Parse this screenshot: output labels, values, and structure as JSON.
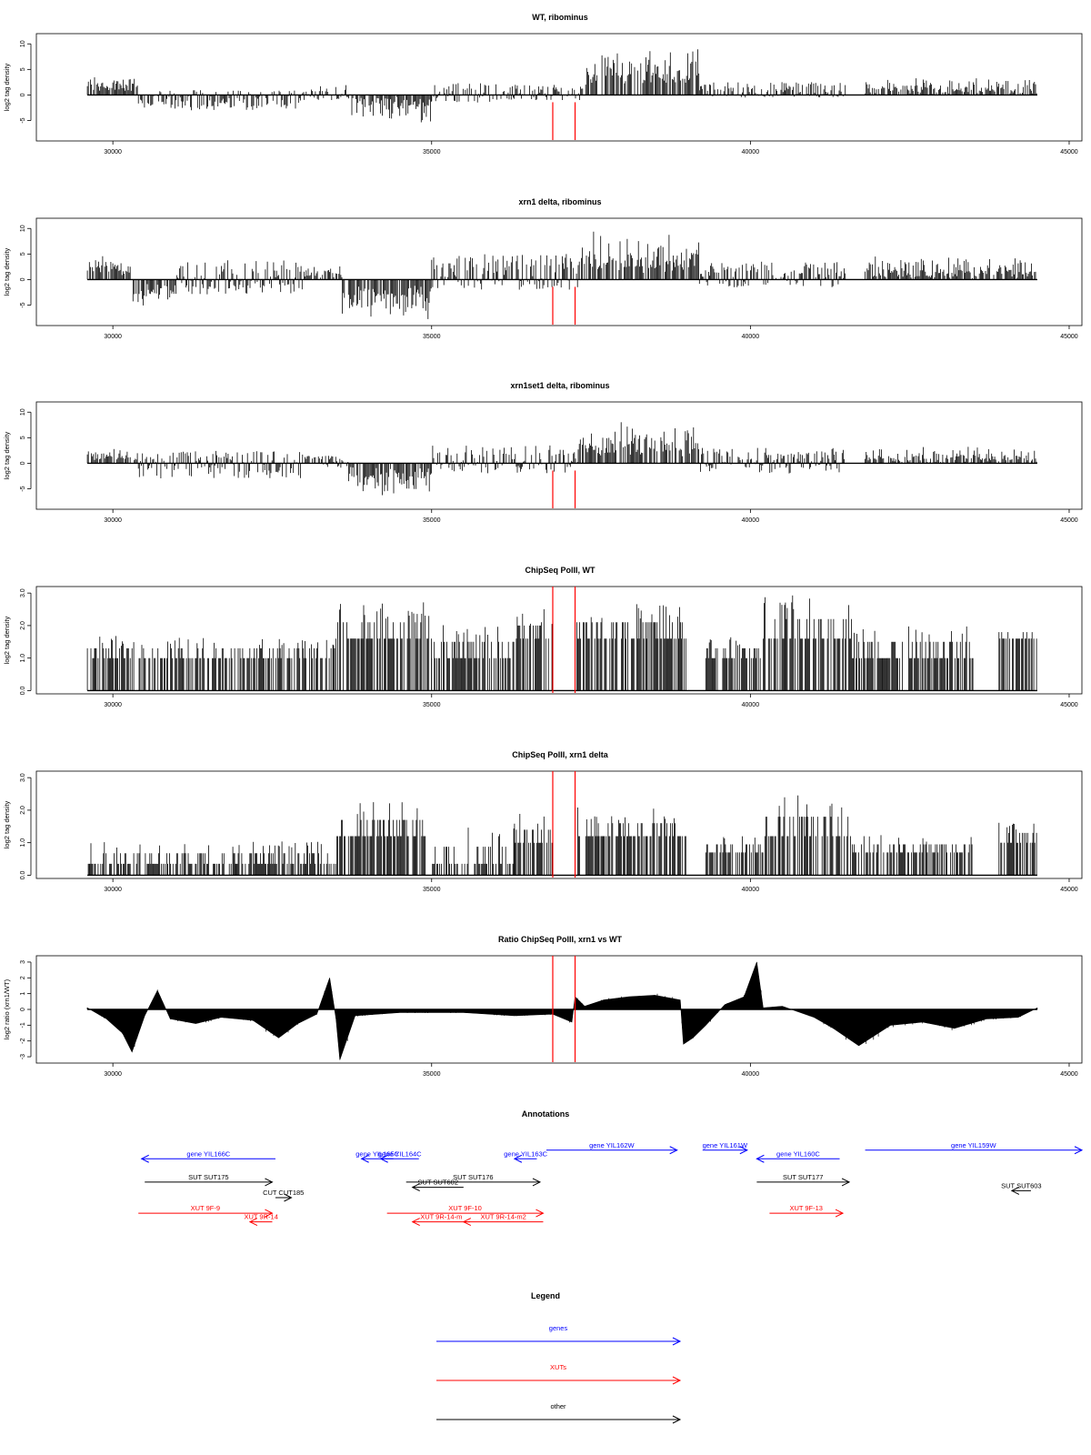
{
  "chart_data": {
    "type": "area",
    "xlim": [
      28800,
      45200
    ],
    "x_ticks": [
      30000,
      35000,
      40000,
      45000
    ],
    "x_tick_labels": [
      "30000",
      "35000",
      "40000",
      "45000"
    ],
    "data_range": [
      29600,
      44500
    ],
    "marker_color": "#ff0000",
    "markers": [
      36900,
      37250
    ],
    "panels": [
      {
        "title": "WT, ribominus",
        "ylabel": "log2 tag density",
        "ylim": [
          -9,
          12
        ],
        "y_ticks": [
          -5,
          0,
          5,
          10
        ],
        "y_tick_labels": [
          "-5",
          "0",
          "5",
          "10"
        ],
        "style": "spikes",
        "segments": [
          {
            "x": [
              29600,
              30400
            ],
            "y": [
              1,
              3
            ]
          },
          {
            "x": [
              30400,
              33000
            ],
            "y": [
              -3,
              1
            ]
          },
          {
            "x": [
              33000,
              33700
            ],
            "y": [
              -1,
              2
            ]
          },
          {
            "x": [
              33700,
              35000
            ],
            "y": [
              -4,
              -0.5
            ]
          },
          {
            "x": [
              35000,
              36200
            ],
            "y": [
              -1.5,
              2.5
            ]
          },
          {
            "x": [
              36200,
              37400
            ],
            "y": [
              -1,
              2
            ]
          },
          {
            "x": [
              37400,
              39200
            ],
            "y": [
              3,
              7
            ]
          },
          {
            "x": [
              39200,
              41500
            ],
            "y": [
              -0.5,
              2.5
            ]
          },
          {
            "x": [
              41800,
              44500
            ],
            "y": [
              0,
              2.5
            ]
          }
        ]
      },
      {
        "title": "xrn1 delta, ribominus",
        "ylabel": "log2 tag density",
        "ylim": [
          -9,
          12
        ],
        "y_ticks": [
          -5,
          0,
          5,
          10
        ],
        "y_tick_labels": [
          "-5",
          "0",
          "5",
          "10"
        ],
        "style": "spikes",
        "segments": [
          {
            "x": [
              29600,
              30300
            ],
            "y": [
              1.5,
              3.5
            ]
          },
          {
            "x": [
              30300,
              31000
            ],
            "y": [
              -4,
              -1
            ]
          },
          {
            "x": [
              31000,
              33000
            ],
            "y": [
              -3,
              4
            ]
          },
          {
            "x": [
              33000,
              33600
            ],
            "y": [
              0.5,
              2
            ]
          },
          {
            "x": [
              33600,
              35000
            ],
            "y": [
              -6,
              -2
            ]
          },
          {
            "x": [
              35000,
              37300
            ],
            "y": [
              -2,
              5
            ]
          },
          {
            "x": [
              37300,
              39200
            ],
            "y": [
              2,
              7
            ]
          },
          {
            "x": [
              39200,
              41500
            ],
            "y": [
              -1.5,
              3.5
            ]
          },
          {
            "x": [
              41800,
              44500
            ],
            "y": [
              0.5,
              3.5
            ]
          }
        ]
      },
      {
        "title": "xrn1set1 delta, ribominus",
        "ylabel": "log2 tag density",
        "ylim": [
          -9,
          12
        ],
        "y_ticks": [
          -5,
          0,
          5,
          10
        ],
        "y_tick_labels": [
          "-5",
          "0",
          "5",
          "10"
        ],
        "style": "spikes",
        "segments": [
          {
            "x": [
              29600,
              30400
            ],
            "y": [
              1,
              2.5
            ]
          },
          {
            "x": [
              30400,
              33000
            ],
            "y": [
              -3,
              2.5
            ]
          },
          {
            "x": [
              33000,
              33700
            ],
            "y": [
              -1,
              1.5
            ]
          },
          {
            "x": [
              33700,
              35000
            ],
            "y": [
              -5,
              -1
            ]
          },
          {
            "x": [
              35000,
              37300
            ],
            "y": [
              -2,
              3.5
            ]
          },
          {
            "x": [
              37300,
              39200
            ],
            "y": [
              2,
              6
            ]
          },
          {
            "x": [
              39200,
              41500
            ],
            "y": [
              -2,
              3
            ]
          },
          {
            "x": [
              41800,
              44500
            ],
            "y": [
              0,
              2.5
            ]
          }
        ]
      },
      {
        "title": "ChipSeq PolII, WT",
        "ylabel": "log2 tag density",
        "ylim": [
          -0.1,
          3.2
        ],
        "y_ticks": [
          0,
          1,
          2,
          3
        ],
        "y_tick_labels": [
          "0.0",
          "1.0",
          "2.0",
          "3.0"
        ],
        "style": "bars",
        "segments": [
          {
            "x": [
              29600,
              33500
            ],
            "y": [
              1,
              1.6
            ]
          },
          {
            "x": [
              33500,
              35000
            ],
            "y": [
              1.6,
              2.6
            ]
          },
          {
            "x": [
              35000,
              36300
            ],
            "y": [
              1,
              2
            ]
          },
          {
            "x": [
              36300,
              36900
            ],
            "y": [
              1.6,
              2.4
            ]
          },
          {
            "x": [
              37250,
              39000
            ],
            "y": [
              1.6,
              2.6
            ]
          },
          {
            "x": [
              39300,
              40200
            ],
            "y": [
              1,
              1.6
            ]
          },
          {
            "x": [
              40200,
              41600
            ],
            "y": [
              1.6,
              2.8
            ]
          },
          {
            "x": [
              41600,
              43500
            ],
            "y": [
              1,
              2
            ]
          },
          {
            "x": [
              43900,
              44500
            ],
            "y": [
              1.6,
              2
            ]
          }
        ]
      },
      {
        "title": "ChipSeq PolII, xrn1 delta",
        "ylabel": "log2 tag density",
        "ylim": [
          -0.1,
          3.2
        ],
        "y_ticks": [
          0,
          1,
          2,
          3
        ],
        "y_tick_labels": [
          "0.0",
          "1.0",
          "2.0",
          "3.0"
        ],
        "style": "bars",
        "segments": [
          {
            "x": [
              29600,
              33500
            ],
            "y": [
              0.35,
              1
            ]
          },
          {
            "x": [
              33500,
              35000
            ],
            "y": [
              1.2,
              2.2
            ]
          },
          {
            "x": [
              35000,
              36300
            ],
            "y": [
              0.35,
              1.4
            ]
          },
          {
            "x": [
              36300,
              36900
            ],
            "y": [
              1,
              1.8
            ]
          },
          {
            "x": [
              37250,
              39000
            ],
            "y": [
              1.2,
              2
            ]
          },
          {
            "x": [
              39300,
              40200
            ],
            "y": [
              0.7,
              1.2
            ]
          },
          {
            "x": [
              40200,
              41600
            ],
            "y": [
              1.2,
              2.4
            ]
          },
          {
            "x": [
              41600,
              43500
            ],
            "y": [
              0.7,
              1.2
            ]
          },
          {
            "x": [
              43900,
              44500
            ],
            "y": [
              1,
              1.6
            ]
          }
        ]
      },
      {
        "title": "Ratio ChipSeq PolII, xrn1 vs WT",
        "ylabel": "log2 ratio (xrn1/WT)",
        "ylim": [
          -3.4,
          3.4
        ],
        "y_ticks": [
          -3,
          -2,
          -1,
          0,
          1,
          2,
          3
        ],
        "y_tick_labels": [
          "-3",
          "-2",
          "-1",
          "0",
          "1",
          "2",
          "3"
        ],
        "style": "area",
        "x": [
          29600,
          29900,
          30150,
          30300,
          30500,
          30700,
          30900,
          31300,
          31700,
          32200,
          32600,
          32900,
          33200,
          33400,
          33500,
          33560,
          33800,
          34500,
          35500,
          36300,
          36900,
          37200,
          37250,
          37400,
          37700,
          38100,
          38500,
          38900,
          38950,
          39100,
          39300,
          39600,
          39900,
          40100,
          40200,
          40500,
          41000,
          41300,
          41700,
          42200,
          42700,
          43200,
          43700,
          44200,
          44500
        ],
        "y": [
          0.1,
          -0.6,
          -1.5,
          -2.7,
          -0.4,
          1.2,
          -0.6,
          -0.9,
          -0.5,
          -0.7,
          -1.8,
          -0.9,
          -0.3,
          2.0,
          -0.6,
          -3.2,
          -0.4,
          -0.2,
          -0.2,
          -0.4,
          -0.3,
          -0.8,
          0.8,
          0.2,
          0.6,
          0.8,
          0.9,
          0.6,
          -2.2,
          -1.8,
          -1.0,
          0.3,
          0.8,
          3.0,
          0.1,
          0.2,
          -0.5,
          -1.2,
          -2.3,
          -1.0,
          -0.8,
          -1.2,
          -0.6,
          -0.5,
          0.1
        ]
      }
    ],
    "annotations": {
      "title": "Annotations",
      "colors": {
        "gene": "#0000ff",
        "xut": "#ff0000",
        "other": "#000000"
      },
      "items": [
        {
          "label": "gene YIL166C",
          "kind": "gene",
          "start": 32550,
          "end": 30450,
          "y": 0.15
        },
        {
          "label": "gene YIL165C",
          "kind": "gene",
          "start": 34400,
          "end": 33900,
          "y": 0.15
        },
        {
          "label": "gene YIL164C",
          "kind": "gene",
          "start": 34800,
          "end": 34200,
          "y": 0.15
        },
        {
          "label": "gene YIL163C",
          "kind": "gene",
          "start": 36650,
          "end": 36300,
          "y": 0.15
        },
        {
          "label": "gene YIL162W",
          "kind": "gene",
          "start": 36800,
          "end": 38850,
          "y": 0.05
        },
        {
          "label": "gene YIL161W",
          "kind": "gene",
          "start": 39250,
          "end": 39950,
          "y": 0.05
        },
        {
          "label": "gene YIL160C",
          "kind": "gene",
          "start": 41400,
          "end": 40100,
          "y": 0.15
        },
        {
          "label": "gene YIL159W",
          "kind": "gene",
          "start": 41800,
          "end": 45200,
          "y": 0.05
        },
        {
          "label": "SUT SUT175",
          "kind": "other",
          "start": 30500,
          "end": 32500,
          "y": 0.42
        },
        {
          "label": "CUT CUT185",
          "kind": "other",
          "start": 32550,
          "end": 32800,
          "y": 0.6
        },
        {
          "label": "SUT SUT176",
          "kind": "other",
          "start": 34600,
          "end": 36700,
          "y": 0.42
        },
        {
          "label": "SUT SUT602",
          "kind": "other",
          "start": 35500,
          "end": 34700,
          "y": 0.48
        },
        {
          "label": "SUT SUT177",
          "kind": "other",
          "start": 40100,
          "end": 41550,
          "y": 0.42
        },
        {
          "label": "SUT SUT603",
          "kind": "other",
          "start": 44400,
          "end": 44100,
          "y": 0.52
        },
        {
          "label": "XUT 9F-9",
          "kind": "xut",
          "start": 30400,
          "end": 32500,
          "y": 0.78
        },
        {
          "label": "XUT 9R-14",
          "kind": "xut",
          "start": 32500,
          "end": 32150,
          "y": 0.88
        },
        {
          "label": "XUT 9F-10",
          "kind": "xut",
          "start": 34300,
          "end": 36750,
          "y": 0.78
        },
        {
          "label": "XUT 9R-14-m",
          "kind": "xut",
          "start": 35600,
          "end": 34700,
          "y": 0.88
        },
        {
          "label": "XUT 9R-14-m2",
          "kind": "xut",
          "start": 36750,
          "end": 35500,
          "y": 0.88
        },
        {
          "label": "XUT 9F-13",
          "kind": "xut",
          "start": 40300,
          "end": 41450,
          "y": 0.78
        }
      ]
    },
    "legend": {
      "title": "Legend",
      "entries": [
        {
          "label": "genes",
          "color": "#0000ff"
        },
        {
          "label": "XUTs",
          "color": "#ff0000"
        },
        {
          "label": "other",
          "color": "#000000"
        }
      ]
    }
  }
}
